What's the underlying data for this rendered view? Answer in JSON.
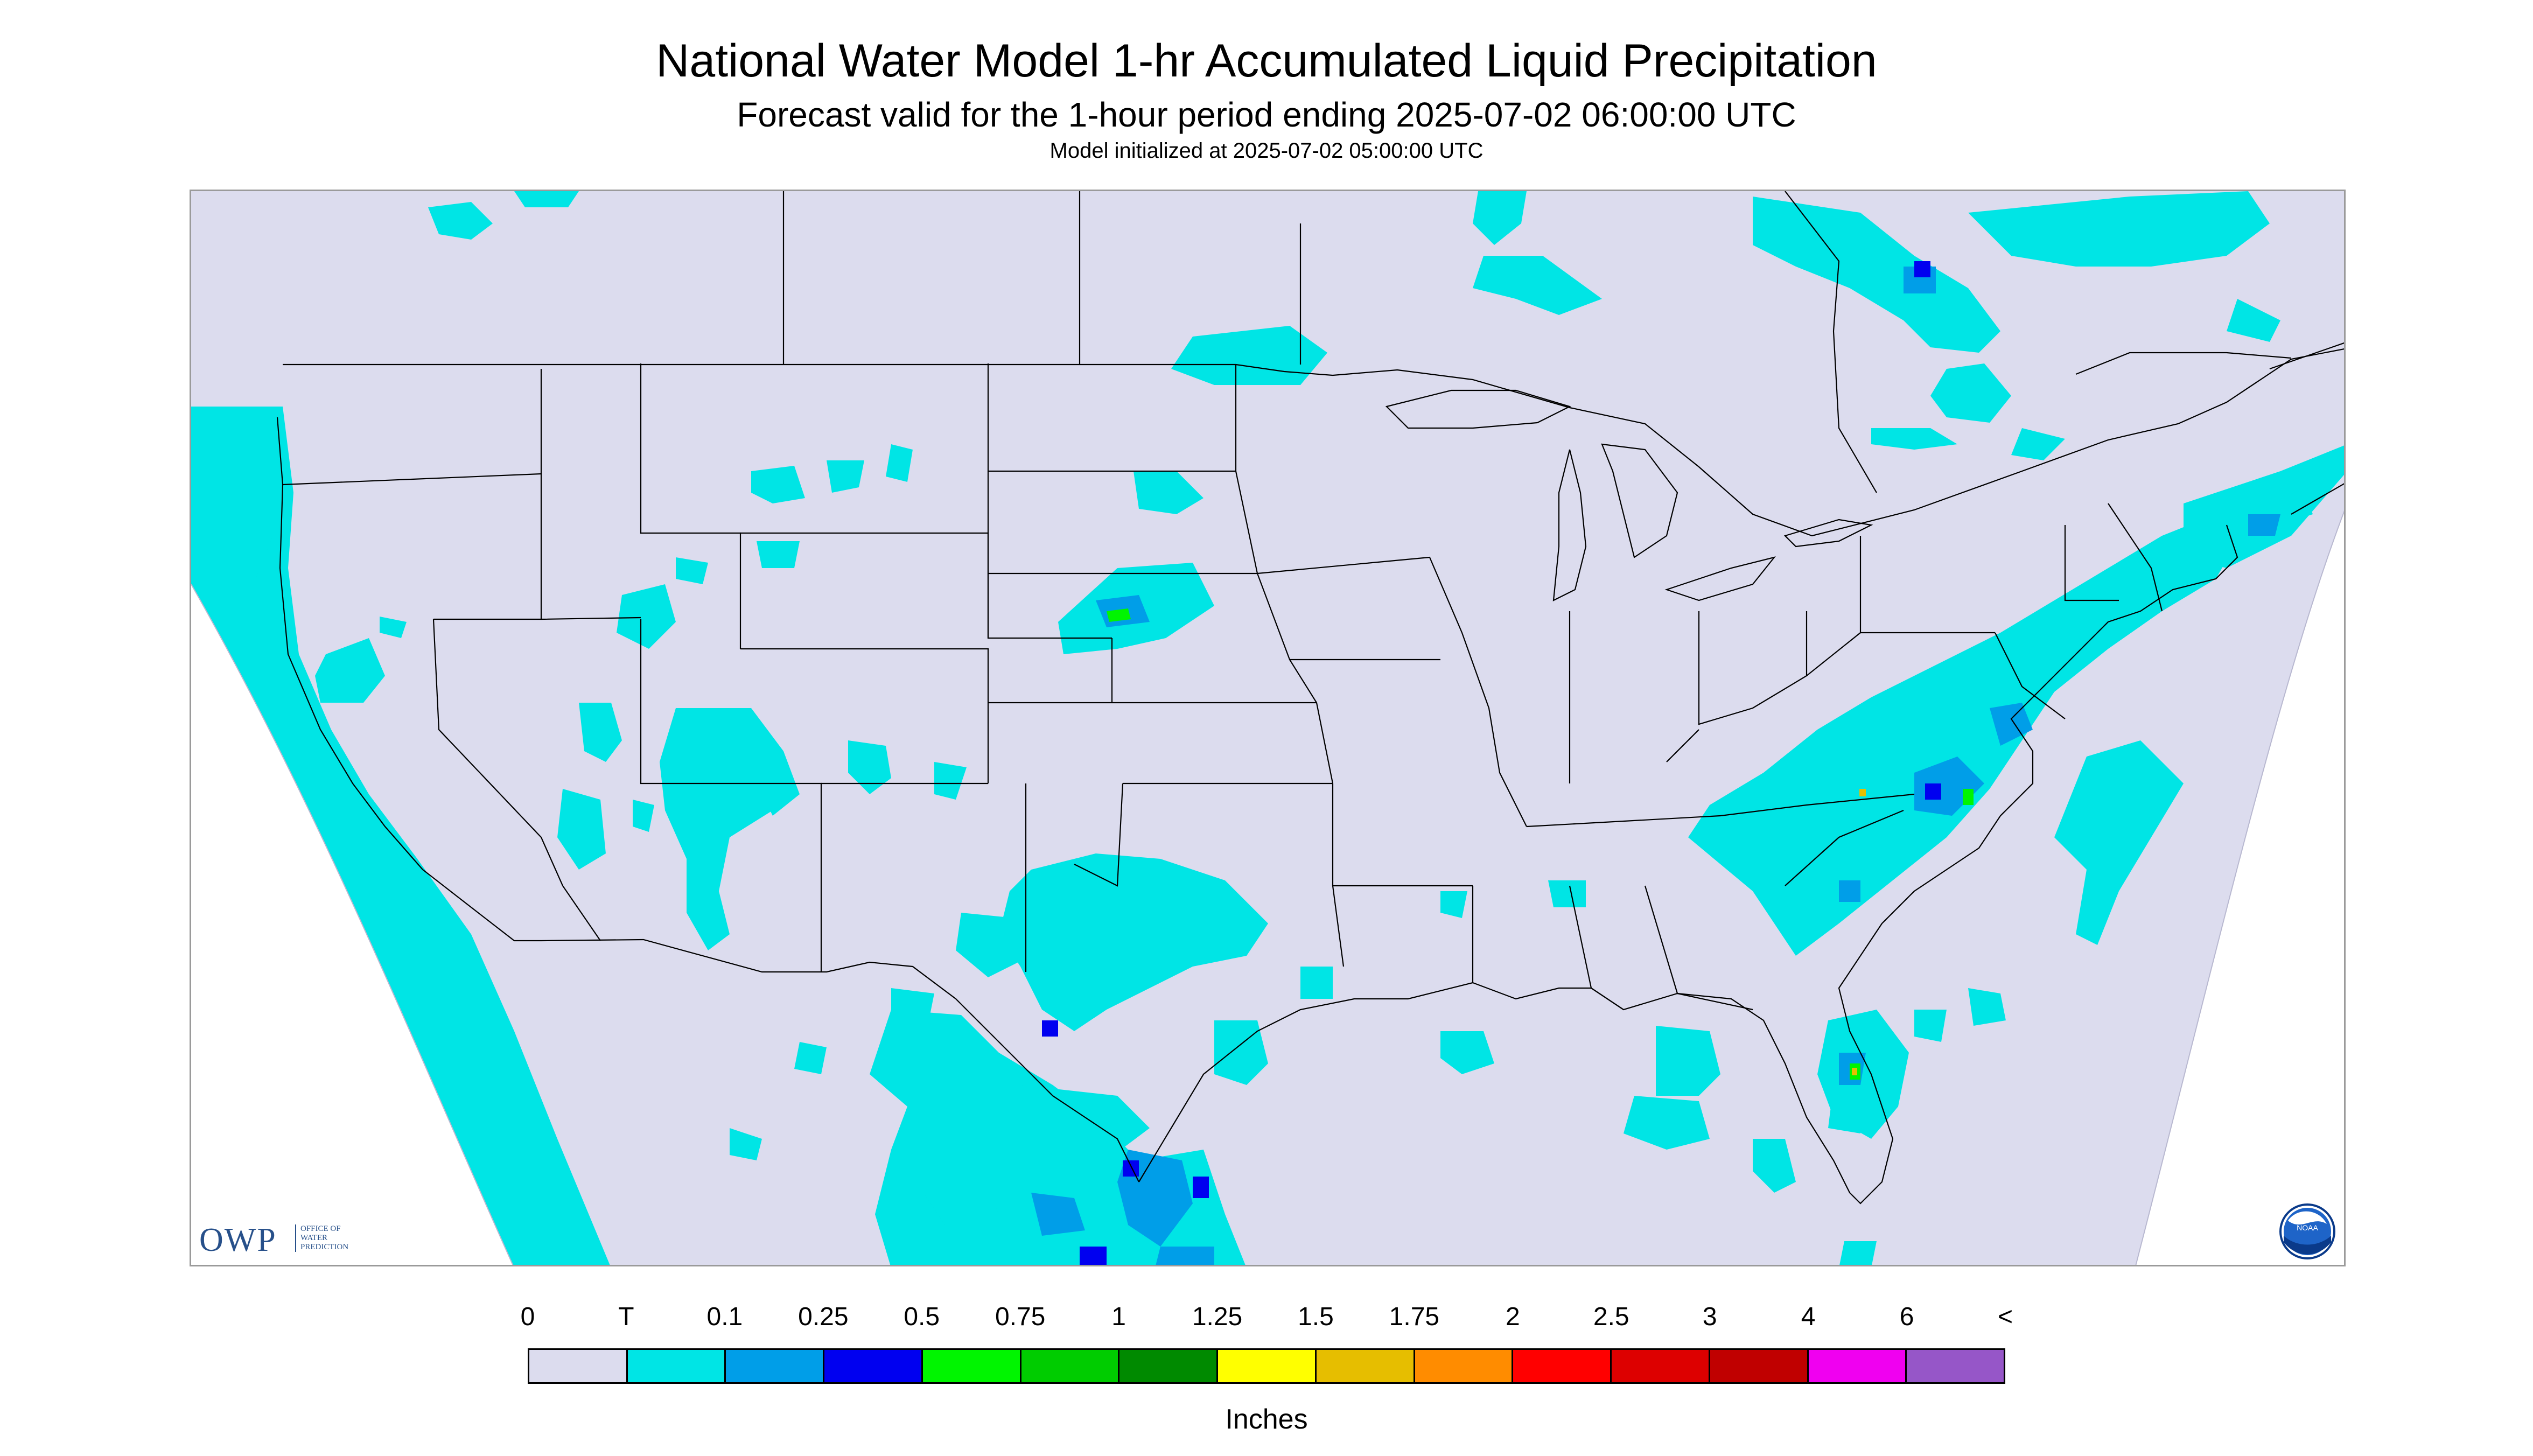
{
  "header": {
    "title": "National Water Model 1-hr Accumulated Liquid Precipitation",
    "subtitle": "Forecast valid for the 1-hour period ending 2025-07-02 06:00:00 UTC",
    "init": "Model initialized at 2025-07-02 05:00:00 UTC"
  },
  "logo": {
    "owp_main": "OWP",
    "owp_sub_1": "OFFICE OF",
    "owp_sub_2": "WATER",
    "owp_sub_3": "PREDICTION",
    "noaa": "NOAA"
  },
  "legend": {
    "labels": [
      "0",
      "T",
      "0.1",
      "0.25",
      "0.5",
      "0.75",
      "1",
      "1.25",
      "1.5",
      "1.75",
      "2",
      "2.5",
      "3",
      "4",
      "6",
      "<"
    ],
    "colors": [
      "#dcdcee",
      "#00e5e5",
      "#009ee8",
      "#0000f0",
      "#00f500",
      "#00cc00",
      "#008a00",
      "#ffff00",
      "#e6be00",
      "#ff8c00",
      "#ff0000",
      "#dd0000",
      "#c00000",
      "#f000f0",
      "#9656c8"
    ],
    "units": "Inches"
  },
  "map": {
    "land_color": "#dcdcee",
    "outside_color": "#ffffff",
    "line_color": "#000000",
    "trace_color": "#00e5e5",
    "light_color": "#009ee8",
    "heavy_color": "#0000f0"
  }
}
